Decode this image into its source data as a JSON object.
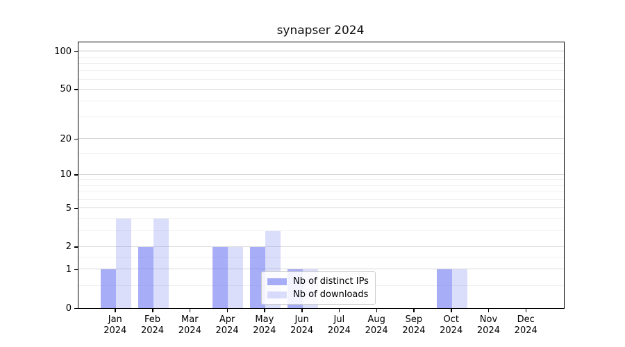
{
  "chart_data": {
    "type": "bar",
    "title": "synapser 2024",
    "categories": [
      {
        "label": "Jan",
        "sub": "2024"
      },
      {
        "label": "Feb",
        "sub": "2024"
      },
      {
        "label": "Mar",
        "sub": "2024"
      },
      {
        "label": "Apr",
        "sub": "2024"
      },
      {
        "label": "May",
        "sub": "2024"
      },
      {
        "label": "Jun",
        "sub": "2024"
      },
      {
        "label": "Jul",
        "sub": "2024"
      },
      {
        "label": "Aug",
        "sub": "2024"
      },
      {
        "label": "Sep",
        "sub": "2024"
      },
      {
        "label": "Oct",
        "sub": "2024"
      },
      {
        "label": "Nov",
        "sub": "2024"
      },
      {
        "label": "Dec",
        "sub": "2024"
      }
    ],
    "series": [
      {
        "name": "Nb of distinct IPs",
        "color": "rgba(113,122,240,0.62)",
        "values": [
          1,
          2,
          0,
          2,
          2,
          1,
          0,
          0,
          0,
          1,
          0,
          0
        ]
      },
      {
        "name": "Nb of downloads",
        "color": "rgba(113,122,240,0.25)",
        "values": [
          4,
          4,
          0,
          2,
          3,
          1,
          0,
          0,
          0,
          1,
          0,
          0
        ]
      }
    ],
    "yscale": "log1p",
    "ymax": 118,
    "yticks": [
      0,
      1,
      2,
      5,
      10,
      20,
      50,
      100
    ],
    "minor_yticks": [
      0.5,
      1.5,
      3,
      4,
      6,
      7,
      8,
      9,
      15,
      30,
      40,
      60,
      70,
      80,
      90
    ],
    "xlabel": "",
    "ylabel": "",
    "grid": "on",
    "legend_position": "lower-center-right"
  }
}
